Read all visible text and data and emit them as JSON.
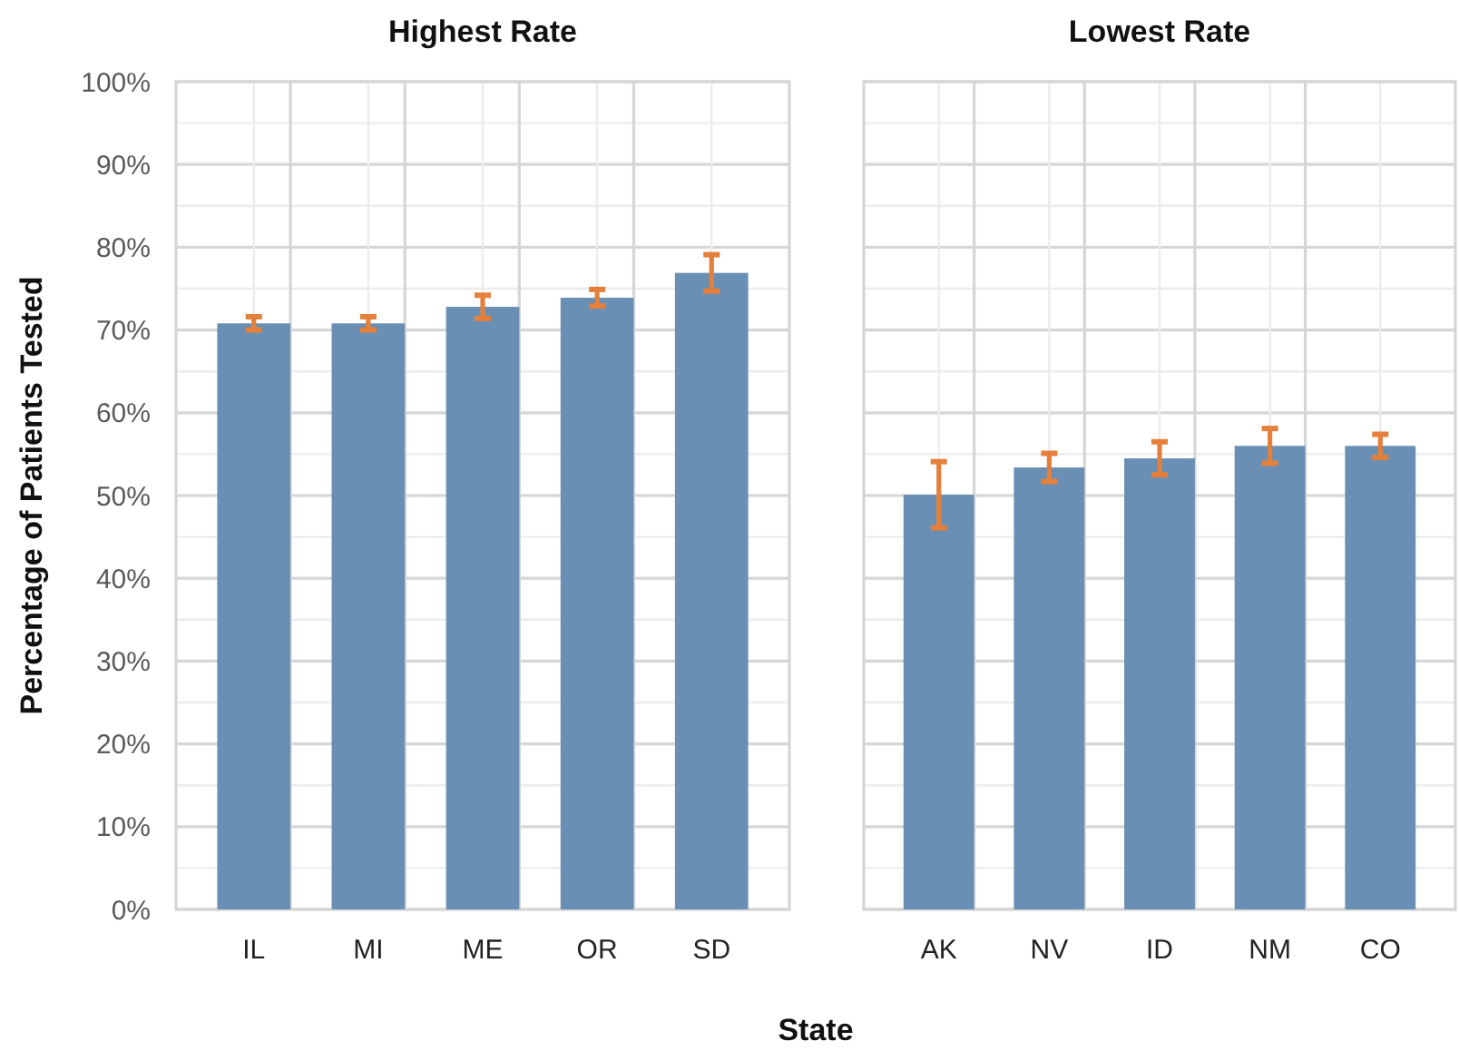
{
  "chart_data": [
    {
      "type": "bar",
      "title": "Highest Rate",
      "xlabel": "State",
      "ylabel": "Percentage of Patients Tested",
      "categories": [
        "IL",
        "MI",
        "ME",
        "OR",
        "SD"
      ],
      "values": [
        70.8,
        70.8,
        72.8,
        73.9,
        76.9
      ],
      "errors": [
        0.8,
        0.8,
        1.4,
        1.0,
        2.2
      ],
      "color": "#6a8fb4",
      "ylim": [
        0,
        100
      ],
      "yticks": [
        {
          "value": 0,
          "label": "0%"
        },
        {
          "value": 5,
          "label": null
        },
        {
          "value": 10,
          "label": "10%"
        },
        {
          "value": 15,
          "label": null
        },
        {
          "value": 20,
          "label": "20%"
        },
        {
          "value": 25,
          "label": null
        },
        {
          "value": 30,
          "label": "30%"
        },
        {
          "value": 35,
          "label": null
        },
        {
          "value": 40,
          "label": "40%"
        },
        {
          "value": 45,
          "label": null
        },
        {
          "value": 50,
          "label": "50%"
        },
        {
          "value": 55,
          "label": null
        },
        {
          "value": 60,
          "label": "60%"
        },
        {
          "value": 65,
          "label": null
        },
        {
          "value": 70,
          "label": "70%"
        },
        {
          "value": 75,
          "label": null
        },
        {
          "value": 80,
          "label": "80%"
        },
        {
          "value": 85,
          "label": null
        },
        {
          "value": 90,
          "label": "90%"
        },
        {
          "value": 95,
          "label": null
        },
        {
          "value": 100,
          "label": "100%"
        }
      ],
      "grid": true
    },
    {
      "type": "bar",
      "title": "Lowest Rate",
      "categories": [
        "AK",
        "NV",
        "ID",
        "NM",
        "CO"
      ],
      "values": [
        50.1,
        53.4,
        54.5,
        56.0,
        56.0
      ],
      "errors": [
        4.0,
        1.7,
        2.0,
        2.1,
        1.4
      ],
      "color": "#6a8fb4",
      "ylim": [
        0,
        100
      ],
      "yticks": [
        {
          "value": 0,
          "label": null
        },
        {
          "value": 5,
          "label": null
        },
        {
          "value": 10,
          "label": null
        },
        {
          "value": 15,
          "label": null
        },
        {
          "value": 20,
          "label": null
        },
        {
          "value": 25,
          "label": null
        },
        {
          "value": 30,
          "label": null
        },
        {
          "value": 35,
          "label": null
        },
        {
          "value": 40,
          "label": null
        },
        {
          "value": 45,
          "label": null
        },
        {
          "value": 50,
          "label": null
        },
        {
          "value": 55,
          "label": null
        },
        {
          "value": 60,
          "label": null
        },
        {
          "value": 65,
          "label": null
        },
        {
          "value": 70,
          "label": null
        },
        {
          "value": 75,
          "label": null
        },
        {
          "value": 80,
          "label": null
        },
        {
          "value": 85,
          "label": null
        },
        {
          "value": 90,
          "label": null
        },
        {
          "value": 95,
          "label": null
        },
        {
          "value": 100,
          "label": null
        }
      ],
      "tick_labels": "x",
      "grid": true
    }
  ]
}
